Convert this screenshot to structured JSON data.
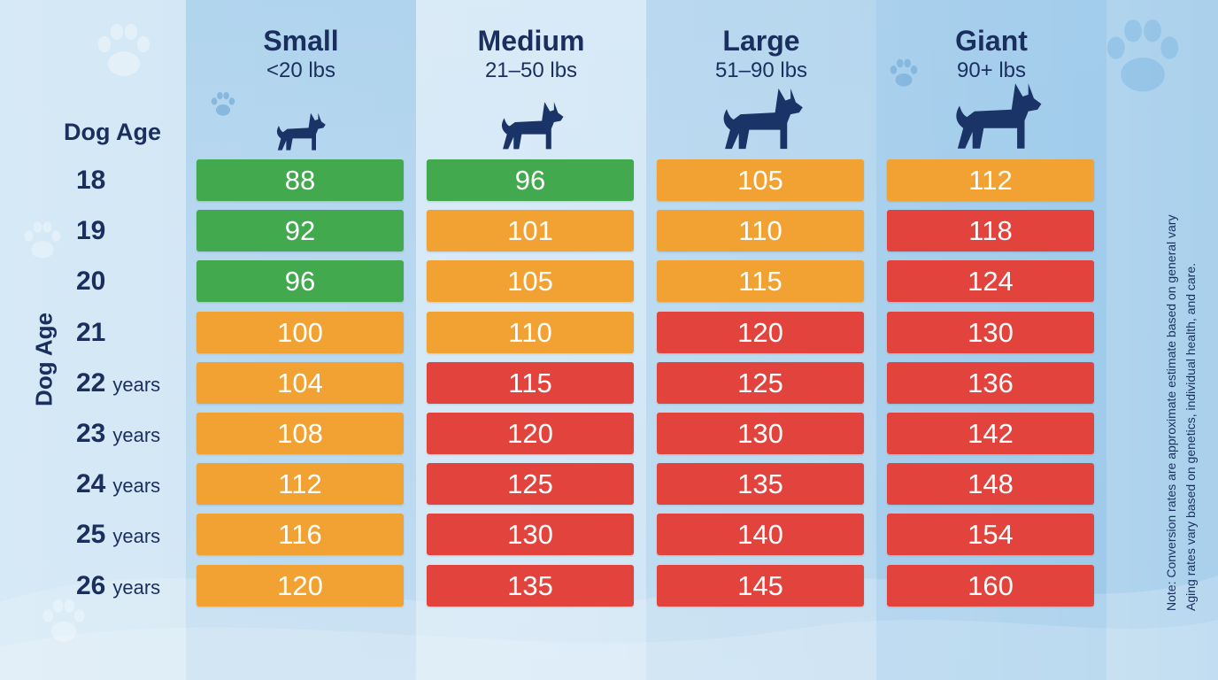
{
  "chart_data": {
    "type": "table",
    "row_header": "Dog Age",
    "axis_label": "Dog Age",
    "columns": [
      {
        "name": "Small",
        "weight": "<20 lbs"
      },
      {
        "name": "Medium",
        "weight": "21–50 lbs"
      },
      {
        "name": "Large",
        "weight": "51–90 lbs"
      },
      {
        "name": "Giant",
        "weight": "90+ lbs"
      }
    ],
    "rows": [
      {
        "age": "18",
        "unit": ""
      },
      {
        "age": "19",
        "unit": ""
      },
      {
        "age": "20",
        "unit": ""
      },
      {
        "age": "21",
        "unit": ""
      },
      {
        "age": "22",
        "unit": "years"
      },
      {
        "age": "23",
        "unit": "years"
      },
      {
        "age": "24",
        "unit": "years"
      },
      {
        "age": "25",
        "unit": "years"
      },
      {
        "age": "26",
        "unit": "years"
      }
    ],
    "values": [
      [
        88,
        96,
        105,
        112
      ],
      [
        92,
        101,
        110,
        118
      ],
      [
        96,
        105,
        115,
        124
      ],
      [
        100,
        110,
        120,
        130
      ],
      [
        104,
        115,
        125,
        136
      ],
      [
        108,
        120,
        130,
        142
      ],
      [
        112,
        125,
        135,
        148
      ],
      [
        116,
        130,
        140,
        154
      ],
      [
        120,
        135,
        145,
        160
      ]
    ],
    "cell_colors": [
      [
        "green",
        "green",
        "orange",
        "orange"
      ],
      [
        "green",
        "orange",
        "orange",
        "red"
      ],
      [
        "green",
        "orange",
        "orange",
        "red"
      ],
      [
        "orange",
        "orange",
        "red",
        "red"
      ],
      [
        "orange",
        "red",
        "red",
        "red"
      ],
      [
        "orange",
        "red",
        "red",
        "red"
      ],
      [
        "orange",
        "red",
        "red",
        "red"
      ],
      [
        "orange",
        "red",
        "red",
        "red"
      ],
      [
        "orange",
        "red",
        "red",
        "red"
      ]
    ]
  },
  "colors": {
    "green": "#43a94e",
    "orange": "#f2a232",
    "red": "#e2443d",
    "text": "#1a2f5e"
  },
  "icons": [
    "dog-silhouette-icon",
    "paw-print-icon"
  ],
  "note": {
    "line1": "Note: Conversion rates are approximate estimate based on general vary",
    "line2": "Aging rates vary based on genetics, individual health, and care."
  }
}
